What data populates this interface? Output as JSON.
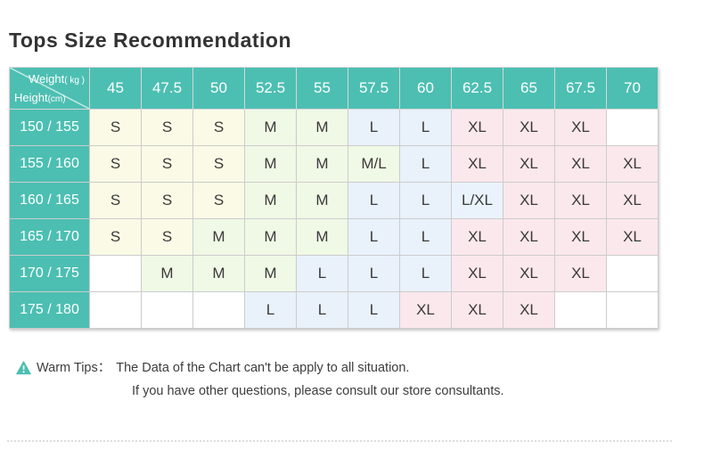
{
  "page": {
    "title": "Tops Size Recommendation"
  },
  "table": {
    "corner": {
      "top_label": "Weight",
      "top_unit": "( kg )",
      "bottom_label": "Height",
      "bottom_unit": "(cm)"
    },
    "weight_headers": [
      "45",
      "47.5",
      "50",
      "52.5",
      "55",
      "57.5",
      "60",
      "62.5",
      "65",
      "67.5",
      "70"
    ],
    "rows": [
      {
        "height": "150 / 155",
        "sizes": [
          "S",
          "S",
          "S",
          "M",
          "M",
          "L",
          "L",
          "XL",
          "XL",
          "XL",
          ""
        ]
      },
      {
        "height": "155 / 160",
        "sizes": [
          "S",
          "S",
          "S",
          "M",
          "M",
          "M/L",
          "L",
          "XL",
          "XL",
          "XL",
          "XL"
        ]
      },
      {
        "height": "160 / 165",
        "sizes": [
          "S",
          "S",
          "S",
          "M",
          "M",
          "L",
          "L",
          "L/XL",
          "XL",
          "XL",
          "XL"
        ]
      },
      {
        "height": "165 / 170",
        "sizes": [
          "S",
          "S",
          "M",
          "M",
          "M",
          "L",
          "L",
          "XL",
          "XL",
          "XL",
          "XL"
        ]
      },
      {
        "height": "170 / 175",
        "sizes": [
          "",
          "M",
          "M",
          "M",
          "L",
          "L",
          "L",
          "XL",
          "XL",
          "XL",
          ""
        ]
      },
      {
        "height": "175 / 180",
        "sizes": [
          "",
          "",
          "",
          "L",
          "L",
          "L",
          "XL",
          "XL",
          "XL",
          "",
          ""
        ]
      }
    ]
  },
  "colors": {
    "header_teal": "#4CBFB2",
    "size_colors": {
      "S": "#FAFAE6",
      "M": "#F0F8E6",
      "M/L": "#F0F8E6",
      "L": "#E9F1FA",
      "L/XL": "#EAF3FB",
      "XL": "#FBE8EC",
      "": "#FFFFFF"
    }
  },
  "warm_tips": {
    "icon": "warning-triangle-icon",
    "label": "Warm Tips：",
    "line1": "The Data of the Chart can't be apply to all situation.",
    "line2": "If you have other questions, please consult our store consultants."
  }
}
